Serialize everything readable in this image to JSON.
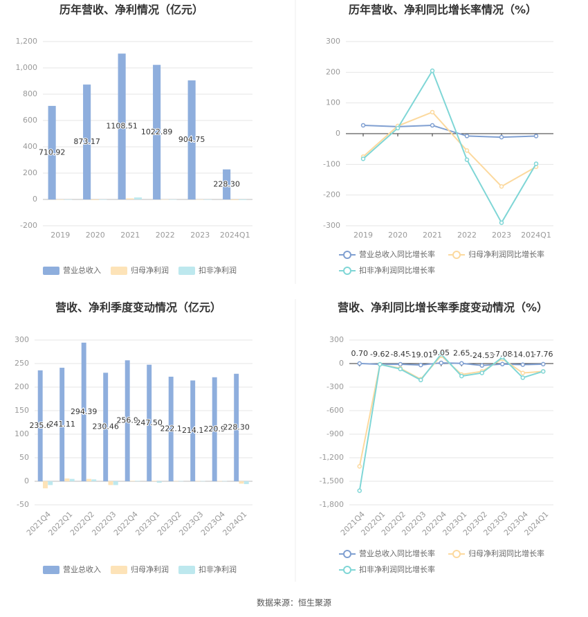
{
  "chart_data": [
    {
      "type": "bar",
      "title": "历年营收、净利情况（亿元）",
      "categories": [
        "2019",
        "2020",
        "2021",
        "2022",
        "2023",
        "2024Q1"
      ],
      "series": [
        {
          "name": "营业总收入",
          "color": "#8eaedd",
          "values": [
            710.92,
            873.17,
            1108.51,
            1022.89,
            904.75,
            228.3
          ],
          "value_labels": [
            "710.92",
            "873.17",
            "1108.51",
            "1022.89",
            "904.75",
            "228.30"
          ]
        },
        {
          "name": "归母净利润",
          "color": "#fde3b8",
          "values": [
            -3,
            -5,
            8,
            -2,
            -2,
            -5
          ]
        },
        {
          "name": "扣非净利润",
          "color": "#bde8ee",
          "values": [
            -3,
            -3,
            15,
            -2,
            -3,
            -4
          ]
        }
      ],
      "ylim": [
        -200,
        1200
      ],
      "yticks": [
        -200,
        0,
        200,
        400,
        600,
        800,
        {
          "value": 1000,
          "label": "1,000"
        },
        {
          "value": 1200,
          "label": "1,200"
        }
      ],
      "grid": true,
      "legend": "bottom"
    },
    {
      "type": "line",
      "title": "历年营收、净利同比增长率情况（%）",
      "categories": [
        "2019",
        "2020",
        "2021",
        "2022",
        "2023",
        "2024Q1"
      ],
      "series": [
        {
          "name": "营业总收入同比增长率",
          "color": "#7f9fd1",
          "values": [
            27.16,
            22.82,
            26.95,
            -7.72,
            -11.55,
            -7.76
          ]
        },
        {
          "name": "归母净利润同比增长率",
          "color": "#fcd99e",
          "values": [
            -75,
            25,
            70,
            -55,
            -172,
            -108
          ]
        },
        {
          "name": "扣非净利润同比增长率",
          "color": "#7fd6d6",
          "values": [
            -82,
            18,
            205,
            -85,
            -290,
            -98
          ]
        }
      ],
      "ylim": [
        -300,
        300
      ],
      "yticks": [
        -300,
        -200,
        -100,
        0,
        100,
        200,
        300
      ],
      "grid": true,
      "legend": "bottom"
    },
    {
      "type": "bar",
      "title": "营收、净利季度变动情况（亿元）",
      "categories": [
        "2021Q4",
        "2022Q1",
        "2022Q2",
        "2022Q3",
        "2022Q4",
        "2023Q1",
        "2023Q2",
        "2023Q3",
        "2023Q4",
        "2024Q1"
      ],
      "series": [
        {
          "name": "营业总收入",
          "color": "#8eaedd",
          "values": [
            235.6,
            241.11,
            294.39,
            230.46,
            256.9,
            247.5,
            222.1,
            214.1,
            220.9,
            228.3
          ],
          "value_labels": [
            "235.6",
            "241.11",
            "294.39",
            "230.46",
            "256.9",
            "247.50",
            "222.1",
            "214.1",
            "220.9",
            "228.30"
          ]
        },
        {
          "name": "归母净利润",
          "color": "#fde3b8",
          "values": [
            -15,
            6,
            5,
            -8,
            1,
            1,
            0.5,
            0.5,
            0.5,
            -5
          ]
        },
        {
          "name": "扣非净利润",
          "color": "#bde8ee",
          "values": [
            -8,
            5,
            4,
            -8,
            1,
            -3,
            0.5,
            0.5,
            0.5,
            -6
          ]
        }
      ],
      "ylim": [
        -50,
        300
      ],
      "yticks": [
        -50,
        0,
        50,
        100,
        150,
        200,
        250,
        300
      ],
      "grid": true,
      "legend": "bottom"
    },
    {
      "type": "line",
      "title": "营收、净利同比增长率季度变动情况（%）",
      "categories": [
        "2021Q4",
        "2022Q1",
        "2022Q2",
        "2022Q3",
        "2022Q4",
        "2023Q1",
        "2023Q2",
        "2023Q3",
        "2023Q4",
        "2024Q1"
      ],
      "series": [
        {
          "name": "营业总收入同比增长率",
          "color": "#7f9fd1",
          "values": [
            0.7,
            -9.62,
            -8.45,
            -19.01,
            9.05,
            2.65,
            -24.53,
            -7.08,
            -14.01,
            -7.76
          ],
          "value_labels": [
            "0.70",
            "-9.62",
            "-8.45",
            "-19.01",
            "9.05",
            "2.65",
            "-24.53",
            "-7.08",
            "-14.01",
            "-7.76"
          ]
        },
        {
          "name": "归母净利润同比增长率",
          "color": "#fcd99e",
          "values": [
            -1310,
            -10,
            -60,
            -200,
            100,
            -140,
            -100,
            60,
            -120,
            -100
          ]
        },
        {
          "name": "扣非净利润同比增长率",
          "color": "#7fd6d6",
          "values": [
            -1620,
            -10,
            -70,
            -210,
            120,
            -160,
            -120,
            80,
            -180,
            -100
          ]
        }
      ],
      "ylim": [
        -1800,
        300
      ],
      "yticks": [
        {
          "value": -1800,
          "label": "-1,800"
        },
        {
          "value": -1500,
          "label": "-1,500"
        },
        {
          "value": -1200,
          "label": "-1,200"
        },
        -900,
        -600,
        -300,
        0,
        300
      ],
      "grid": true,
      "legend": "bottom"
    }
  ],
  "footer": "数据来源：恒生聚源"
}
